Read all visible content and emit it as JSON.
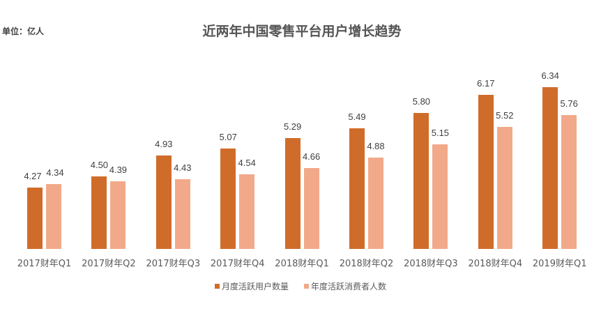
{
  "unit_label": "单位：亿人",
  "chart_data": {
    "type": "bar",
    "title": "近两年中国零售平台用户增长趋势",
    "unit": "亿人",
    "xlabel": "",
    "ylabel": "",
    "ylim": [
      3.0,
      6.6
    ],
    "grid": false,
    "legend_position": "bottom",
    "categories": [
      "2017财年Q1",
      "2017财年Q2",
      "2017财年Q3",
      "2017财年Q4",
      "2018财年Q1",
      "2018财年Q2",
      "2018财年Q3",
      "2018财年Q4",
      "2019财年Q1"
    ],
    "series": [
      {
        "name": "月度活跃用户数量",
        "color": "#D06C2A",
        "values": [
          4.27,
          4.5,
          4.93,
          5.07,
          5.29,
          5.49,
          5.8,
          6.17,
          6.34
        ]
      },
      {
        "name": "年度活跃消费者人数",
        "color": "#F2A98A",
        "values": [
          4.34,
          4.39,
          4.43,
          4.54,
          4.66,
          4.88,
          5.15,
          5.52,
          5.76
        ]
      }
    ],
    "value_labels": [
      [
        "4.27",
        "4.50",
        "4.93",
        "5.07",
        "5.29",
        "5.49",
        "5.80",
        "6.17",
        "6.34"
      ],
      [
        "4.34",
        "4.39",
        "4.43",
        "4.54",
        "4.66",
        "4.88",
        "5.15",
        "5.52",
        "5.76"
      ]
    ]
  }
}
